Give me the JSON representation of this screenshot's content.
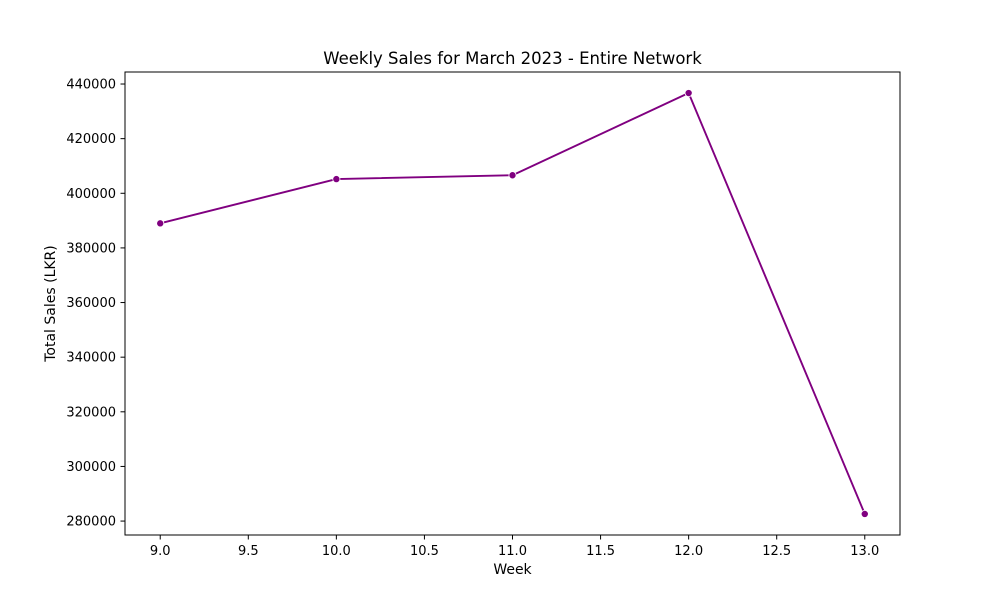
{
  "chart_data": {
    "type": "line",
    "title": "Weekly Sales for March 2023 - Entire Network",
    "xlabel": "Week",
    "ylabel": "Total Sales (LKR)",
    "x": [
      9.0,
      10.0,
      11.0,
      12.0,
      13.0
    ],
    "series": [
      {
        "values": [
          389000,
          405200,
          406600,
          436700,
          282600
        ],
        "color": "#800080",
        "marker": "circle"
      }
    ],
    "xlim": [
      8.8,
      13.2
    ],
    "ylim": [
      274900,
      444400
    ],
    "xticks": [
      "9.0",
      "9.5",
      "10.0",
      "10.5",
      "11.0",
      "11.5",
      "12.0",
      "12.5",
      "13.0"
    ],
    "yticks": [
      "280000",
      "300000",
      "320000",
      "340000",
      "360000",
      "380000",
      "400000",
      "420000",
      "440000"
    ],
    "grid": false,
    "legend": false
  }
}
